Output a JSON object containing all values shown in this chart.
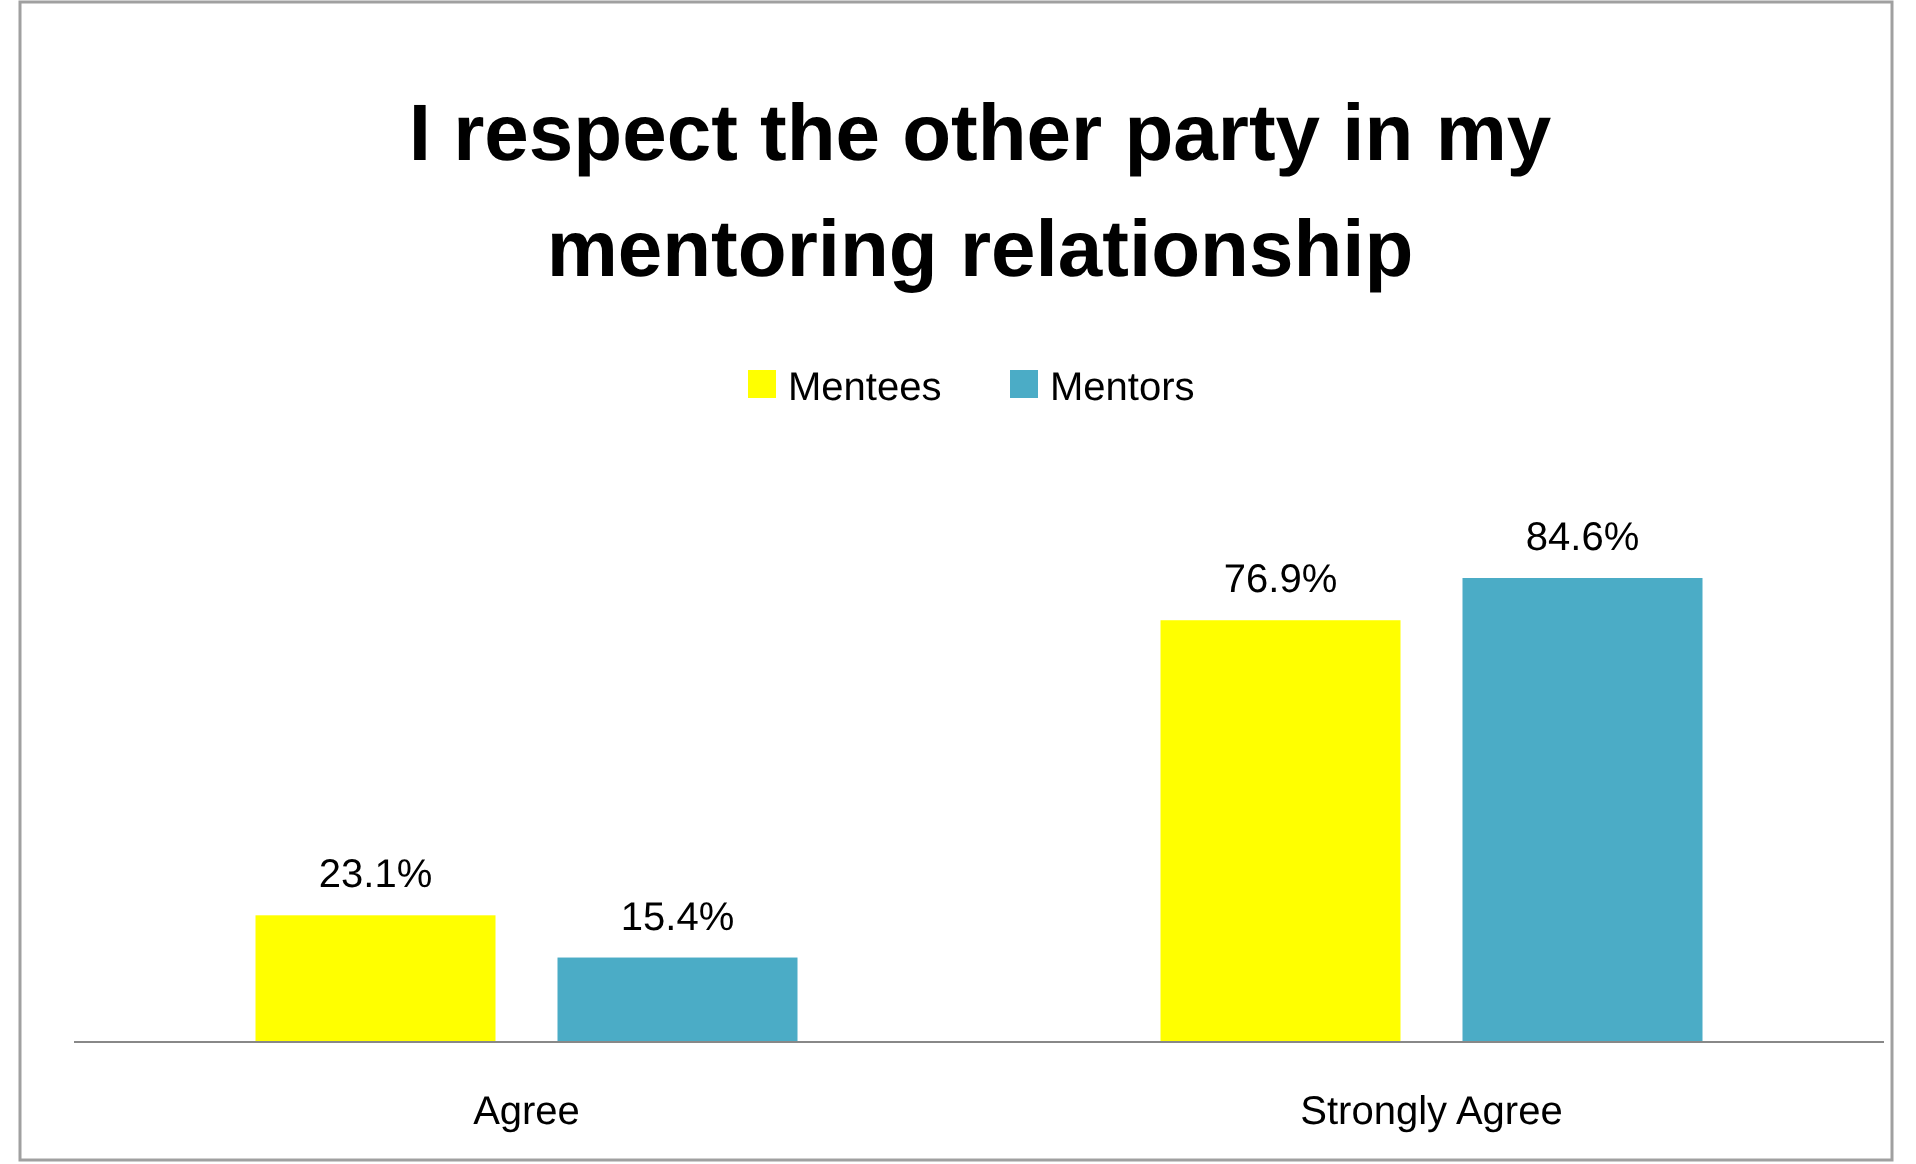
{
  "chart_data": {
    "type": "bar",
    "title": "I respect the other party in my mentoring relationship",
    "categories": [
      "Agree",
      "Strongly Agree"
    ],
    "series": [
      {
        "name": "Mentees",
        "color": "#ffff00",
        "values": [
          23.1,
          76.9
        ],
        "value_labels": [
          "23.1%",
          "76.9%"
        ]
      },
      {
        "name": "Mentors",
        "color": "#4bacc6",
        "values": [
          15.4,
          84.6
        ],
        "value_labels": [
          "15.4%",
          "84.6%"
        ]
      }
    ],
    "legend": "top"
  }
}
